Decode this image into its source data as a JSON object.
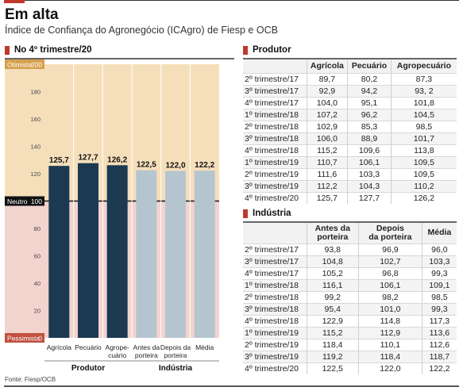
{
  "title": "Em alta",
  "subtitle": "Índice de Confiança do Agronegócio (ICAgro) de Fiesp e OCB",
  "chart_data": {
    "type": "bar",
    "title": "No 4º trimestre/20",
    "categories": [
      "Agrícola",
      "Pecuário",
      "Agropecuário",
      "Antes da porteira",
      "Depois da porteira",
      "Média"
    ],
    "category_lines": [
      [
        "Agrícola"
      ],
      [
        "Pecuário"
      ],
      [
        "Agrope-",
        "cuário"
      ],
      [
        "Antes da",
        "porteira"
      ],
      [
        "Depois da",
        "porteira"
      ],
      [
        "Média"
      ]
    ],
    "values": [
      125.7,
      127.7,
      126.2,
      122.5,
      122.0,
      122.2
    ],
    "value_labels": [
      "125,7",
      "127,7",
      "126,2",
      "122,5",
      "122,0",
      "122,2"
    ],
    "groups": [
      {
        "name": "Produtor",
        "categories": [
          "Agrícola",
          "Pecuário",
          "Agropecuário"
        ],
        "color": "#1b3a52"
      },
      {
        "name": "Indústria",
        "categories": [
          "Antes da porteira",
          "Depois da porteira",
          "Média"
        ],
        "color": "#b5c5cf"
      }
    ],
    "ylim": [
      0,
      200
    ],
    "yticks": [
      20,
      40,
      60,
      80,
      120,
      140,
      160,
      180
    ],
    "zones": {
      "top_label": "Otimista",
      "top_value": "200",
      "mid_label": "Neutro",
      "mid_value": "100",
      "bottom_label": "Pessimista",
      "bottom_value": "0",
      "optimistic_color": "#f5dfbb",
      "pessimistic_color": "#f2d3ce"
    }
  },
  "produtor_table": {
    "heading": "Produtor",
    "columns": [
      "Agrícola",
      "Pecuário",
      "Agropecuário"
    ],
    "rows": [
      [
        "2º trimestre/17",
        "89,7",
        "80,2",
        "87,3"
      ],
      [
        "3º trimestre/17",
        "92,9",
        "94,2",
        "93, 2"
      ],
      [
        "4º trimestre/17",
        "104,0",
        "95,1",
        "101,8"
      ],
      [
        "1º trimestre/18",
        "107,2",
        "96,2",
        "104,5"
      ],
      [
        "2º trimestre/18",
        "102,9",
        "85,3",
        "98,5"
      ],
      [
        "3º trimestre/18",
        "106,0",
        "88,9",
        "101,7"
      ],
      [
        "4º trimestre/18",
        "115,2",
        "109,6",
        "113,8"
      ],
      [
        "1º trimestre/19",
        "110,7",
        "106,1",
        "109,5"
      ],
      [
        "2º trimestre/19",
        "111,6",
        "103,3",
        "109,5"
      ],
      [
        "3º trimestre/19",
        "112,2",
        "104,3",
        "110,2"
      ],
      [
        "4º trimestre/20",
        "125,7",
        "127,7",
        "126,2"
      ]
    ]
  },
  "industria_table": {
    "heading": "Indústria",
    "columns": [
      [
        "Antes da",
        "porteira"
      ],
      [
        "Depois",
        "da porteira"
      ],
      [
        "Média"
      ]
    ],
    "rows": [
      [
        "2º trimestre/17",
        "93,8",
        "96,9",
        "96,0"
      ],
      [
        "3º trimestre/17",
        "104,8",
        "102,7",
        "103,3"
      ],
      [
        "4º trimestre/17",
        "105,2",
        "96,8",
        "99,3"
      ],
      [
        "1º trimestre/18",
        "116,1",
        "106,1",
        "109,1"
      ],
      [
        "2º trimestre/18",
        "99,2",
        "98,2",
        "98,5"
      ],
      [
        "3º trimestre/18",
        "95,4",
        "101,0",
        "99,3"
      ],
      [
        "4º trimestre/18",
        "122,9",
        "114,8",
        "117,3"
      ],
      [
        "1º trimestre/19",
        "115,2",
        "112,9",
        "113,6"
      ],
      [
        "2º trimestre/19",
        "118,4",
        "110,1",
        "112,6"
      ],
      [
        "3º trimestre/19",
        "119,2",
        "118,4",
        "118,7"
      ],
      [
        "4º trimestre/20",
        "122,5",
        "122,0",
        "122,2"
      ]
    ]
  },
  "source": "Fonte: Fiesp/OCB"
}
